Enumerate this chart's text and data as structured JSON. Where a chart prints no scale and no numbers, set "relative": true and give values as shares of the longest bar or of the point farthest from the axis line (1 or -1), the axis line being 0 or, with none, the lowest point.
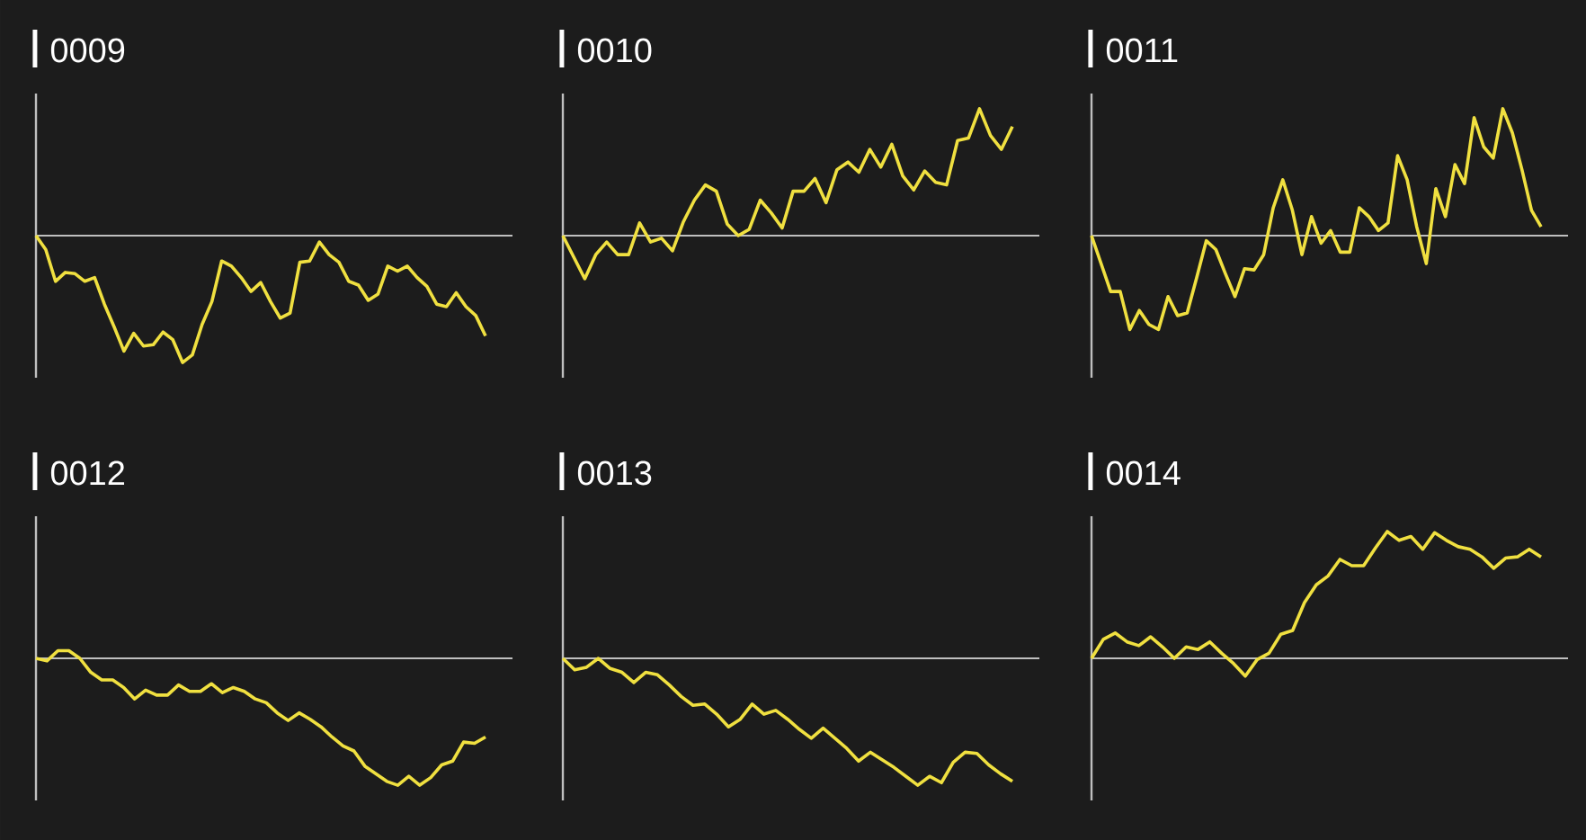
{
  "chart_data": [
    {
      "type": "line",
      "title": "0009",
      "relative": true,
      "categories": [
        null,
        null,
        null,
        null,
        null,
        null,
        null,
        null,
        null,
        null,
        null,
        null,
        null,
        null,
        null,
        null,
        null,
        null,
        null,
        null,
        null,
        null,
        null,
        null,
        null,
        null,
        null,
        null,
        null,
        null,
        null,
        null,
        null,
        null,
        null,
        null,
        null,
        null,
        null,
        null,
        null,
        null,
        null,
        null,
        null,
        null,
        null
      ],
      "series": [
        {
          "color": "#f0e040",
          "values": [
            0,
            -0.11,
            -0.36,
            -0.29,
            -0.3,
            -0.36,
            -0.33,
            -0.54,
            -0.72,
            -0.91,
            -0.77,
            -0.87,
            -0.86,
            -0.76,
            -0.82,
            -1,
            -0.94,
            -0.7,
            -0.52,
            -0.2,
            -0.24,
            -0.33,
            -0.44,
            -0.37,
            -0.52,
            -0.65,
            -0.61,
            -0.21,
            -0.2,
            -0.05,
            -0.15,
            -0.21,
            -0.36,
            -0.39,
            -0.51,
            -0.46,
            -0.24,
            -0.28,
            -0.24,
            -0.33,
            -0.4,
            -0.54,
            -0.56,
            -0.45,
            -0.56,
            -0.63,
            -0.79
          ]
        }
      ]
    },
    {
      "type": "line",
      "title": "0010",
      "relative": true,
      "categories": [
        null,
        null,
        null,
        null,
        null,
        null,
        null,
        null,
        null,
        null,
        null,
        null,
        null,
        null,
        null,
        null,
        null,
        null,
        null,
        null,
        null,
        null,
        null,
        null,
        null,
        null,
        null,
        null,
        null,
        null,
        null,
        null,
        null,
        null,
        null,
        null,
        null,
        null,
        null,
        null,
        null,
        null
      ],
      "series": [
        {
          "color": "#f0e040",
          "values": [
            0,
            -0.17,
            -0.34,
            -0.15,
            -0.05,
            -0.15,
            -0.15,
            0.1,
            -0.05,
            -0.02,
            -0.12,
            0.11,
            0.28,
            0.4,
            0.35,
            0.09,
            0,
            0.05,
            0.28,
            0.18,
            0.06,
            0.35,
            0.35,
            0.45,
            0.26,
            0.52,
            0.58,
            0.5,
            0.68,
            0.54,
            0.72,
            0.47,
            0.36,
            0.51,
            0.42,
            0.4,
            0.75,
            0.77,
            1,
            0.79,
            0.68,
            0.86
          ]
        }
      ]
    },
    {
      "type": "line",
      "title": "0011",
      "relative": true,
      "categories": [
        null,
        null,
        null,
        null,
        null,
        null,
        null,
        null,
        null,
        null,
        null,
        null,
        null,
        null,
        null,
        null,
        null,
        null,
        null,
        null,
        null,
        null,
        null,
        null,
        null,
        null,
        null,
        null,
        null,
        null,
        null,
        null,
        null,
        null,
        null,
        null,
        null,
        null,
        null,
        null,
        null,
        null,
        null,
        null,
        null,
        null,
        null,
        null
      ],
      "series": [
        {
          "color": "#f0e040",
          "values": [
            0,
            -0.22,
            -0.44,
            -0.44,
            -0.74,
            -0.59,
            -0.7,
            -0.74,
            -0.48,
            -0.63,
            -0.61,
            -0.33,
            -0.04,
            -0.11,
            -0.3,
            -0.48,
            -0.26,
            -0.27,
            -0.15,
            0.22,
            0.44,
            0.2,
            -0.15,
            0.15,
            -0.06,
            0.04,
            -0.13,
            -0.13,
            0.22,
            0.15,
            0.04,
            0.1,
            0.63,
            0.44,
            0.07,
            -0.22,
            0.37,
            0.15,
            0.56,
            0.41,
            0.93,
            0.7,
            0.61,
            1,
            0.81,
            0.52,
            0.2,
            0.07
          ]
        }
      ]
    },
    {
      "type": "line",
      "title": "0012",
      "relative": true,
      "categories": [
        null,
        null,
        null,
        null,
        null,
        null,
        null,
        null,
        null,
        null,
        null,
        null,
        null,
        null,
        null,
        null,
        null,
        null,
        null,
        null,
        null,
        null,
        null,
        null,
        null,
        null,
        null,
        null,
        null,
        null,
        null,
        null,
        null,
        null,
        null,
        null,
        null,
        null,
        null,
        null,
        null,
        null
      ],
      "series": [
        {
          "color": "#f0e040",
          "values": [
            0,
            -0.02,
            0.06,
            0.06,
            0,
            -0.11,
            -0.17,
            -0.17,
            -0.23,
            -0.32,
            -0.25,
            -0.29,
            -0.29,
            -0.21,
            -0.26,
            -0.26,
            -0.2,
            -0.27,
            -0.23,
            -0.26,
            -0.32,
            -0.35,
            -0.43,
            -0.49,
            -0.43,
            -0.48,
            -0.54,
            -0.62,
            -0.69,
            -0.73,
            -0.85,
            -0.91,
            -0.97,
            -1,
            -0.93,
            -1,
            -0.94,
            -0.84,
            -0.81,
            -0.66,
            -0.67,
            -0.62
          ]
        }
      ]
    },
    {
      "type": "line",
      "title": "0013",
      "relative": true,
      "categories": [
        null,
        null,
        null,
        null,
        null,
        null,
        null,
        null,
        null,
        null,
        null,
        null,
        null,
        null,
        null,
        null,
        null,
        null,
        null,
        null,
        null,
        null,
        null,
        null,
        null,
        null,
        null,
        null,
        null,
        null,
        null,
        null,
        null,
        null,
        null,
        null,
        null,
        null,
        null
      ],
      "series": [
        {
          "color": "#f0e040",
          "values": [
            0,
            -0.09,
            -0.07,
            0,
            -0.08,
            -0.11,
            -0.19,
            -0.11,
            -0.13,
            -0.21,
            -0.3,
            -0.37,
            -0.36,
            -0.44,
            -0.54,
            -0.48,
            -0.36,
            -0.44,
            -0.41,
            -0.48,
            -0.56,
            -0.63,
            -0.55,
            -0.63,
            -0.71,
            -0.81,
            -0.74,
            -0.8,
            -0.86,
            -0.93,
            -1,
            -0.93,
            -0.98,
            -0.82,
            -0.74,
            -0.75,
            -0.84,
            -0.91,
            -0.97
          ]
        }
      ]
    },
    {
      "type": "line",
      "title": "0014",
      "relative": true,
      "categories": [
        null,
        null,
        null,
        null,
        null,
        null,
        null,
        null,
        null,
        null,
        null,
        null,
        null,
        null,
        null,
        null,
        null,
        null,
        null,
        null,
        null,
        null,
        null,
        null,
        null,
        null,
        null,
        null,
        null,
        null,
        null,
        null,
        null,
        null,
        null,
        null,
        null,
        null,
        null
      ],
      "series": [
        {
          "color": "#f0e040",
          "values": [
            0,
            0.15,
            0.2,
            0.13,
            0.1,
            0.17,
            0.09,
            0,
            0.09,
            0.07,
            0.13,
            0.04,
            -0.04,
            -0.14,
            -0.01,
            0.04,
            0.19,
            0.22,
            0.44,
            0.58,
            0.65,
            0.78,
            0.73,
            0.73,
            0.87,
            1,
            0.93,
            0.96,
            0.86,
            0.99,
            0.93,
            0.88,
            0.86,
            0.8,
            0.71,
            0.79,
            0.8,
            0.86,
            0.8
          ]
        }
      ]
    }
  ]
}
